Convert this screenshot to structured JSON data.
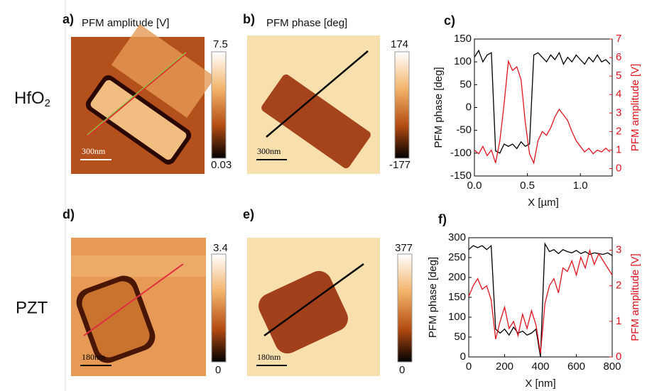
{
  "figure": {
    "rows": [
      {
        "label": "HfO",
        "sub": "2"
      },
      {
        "label": "PZT"
      }
    ],
    "panels": [
      {
        "label": "a)",
        "title": "PFM amplitude [V]",
        "scale_bar": "300nm",
        "colorbar": [
          7.5,
          0.03
        ]
      },
      {
        "label": "b)",
        "title": "PFM phase [deg]",
        "scale_bar": "300nm",
        "colorbar": [
          174,
          -177
        ]
      },
      {
        "label": "d)",
        "scale_bar": "180nm",
        "colorbar": [
          3.4,
          0
        ]
      },
      {
        "label": "e)",
        "scale_bar": "180nm",
        "colorbar": [
          377,
          0
        ]
      }
    ]
  },
  "chart_data": [
    {
      "type": "line",
      "label": "c)",
      "x": [
        0,
        0.04,
        0.08,
        0.12,
        0.16,
        0.2,
        0.24,
        0.28,
        0.32,
        0.36,
        0.4,
        0.44,
        0.48,
        0.52,
        0.56,
        0.6,
        0.64,
        0.68,
        0.72,
        0.76,
        0.8,
        0.84,
        0.88,
        0.92,
        0.96,
        1.0,
        1.04,
        1.08,
        1.12,
        1.16,
        1.2,
        1.24,
        1.28
      ],
      "xlim": [
        0,
        1.3
      ],
      "xticks": [
        {
          "value": 0,
          "label": "0.0"
        },
        {
          "value": 0.5,
          "label": "0.5"
        },
        {
          "value": 1,
          "label": "1.0"
        }
      ],
      "ylim": [
        -150,
        150
      ],
      "yticks": [
        -150,
        -100,
        -50,
        0,
        50,
        100,
        150
      ],
      "y2lim": [
        -0.4,
        7
      ],
      "y2ticks": [
        0,
        1,
        2,
        3,
        4,
        5,
        6,
        7
      ],
      "xlabel": "X [µm]",
      "ylabel": "PFM phase [deg]",
      "y2label": "PFM amplitude [V]",
      "series": [
        {
          "color": "#000000",
          "values": [
            110,
            125,
            100,
            115,
            120,
            -95,
            -100,
            -80,
            -85,
            -80,
            -90,
            -75,
            -85,
            -80,
            115,
            120,
            110,
            100,
            115,
            105,
            120,
            95,
            110,
            100,
            115,
            105,
            95,
            110,
            100,
            115,
            100,
            105,
            95
          ]
        },
        {
          "color": "#e0141e",
          "axis": "y2",
          "values": [
            1.0,
            0.8,
            1.2,
            0.7,
            1.0,
            0.3,
            1.5,
            3.5,
            5.8,
            5.3,
            5.5,
            4.8,
            2.5,
            0.8,
            0.3,
            1.5,
            2.0,
            1.8,
            2.2,
            2.8,
            3.2,
            2.9,
            2.6,
            2.0,
            1.5,
            1.2,
            0.9,
            1.1,
            0.8,
            1.0,
            0.9,
            1.1,
            0.9
          ]
        }
      ]
    },
    {
      "type": "line",
      "label": "f)",
      "x": [
        0,
        25,
        50,
        75,
        100,
        125,
        150,
        175,
        200,
        225,
        250,
        275,
        300,
        325,
        350,
        375,
        400,
        425,
        450,
        475,
        500,
        525,
        550,
        575,
        600,
        625,
        650,
        675,
        700,
        725,
        750,
        775,
        800
      ],
      "xlim": [
        0,
        800
      ],
      "xticks": [
        0,
        200,
        400,
        600,
        800
      ],
      "ylim": [
        0,
        300
      ],
      "yticks": [
        0,
        50,
        100,
        150,
        200,
        250,
        300
      ],
      "y2lim": [
        0,
        3.35
      ],
      "y2ticks": [
        0,
        1,
        2,
        3
      ],
      "xlabel": "X [nm]",
      "ylabel": "PFM phase [deg]",
      "y2label": "PFM amplitude [V]",
      "series": [
        {
          "color": "#000000",
          "values": [
            270,
            280,
            275,
            280,
            270,
            280,
            70,
            60,
            70,
            55,
            75,
            60,
            65,
            55,
            60,
            70,
            0,
            285,
            265,
            270,
            260,
            270,
            265,
            262,
            268,
            260,
            265,
            258,
            262,
            260,
            258,
            262,
            255
          ]
        },
        {
          "color": "#e0141e",
          "axis": "y2",
          "values": [
            1.7,
            2.0,
            2.2,
            1.9,
            2.0,
            1.6,
            0.5,
            1.0,
            1.4,
            0.8,
            1.0,
            0.6,
            1.2,
            0.8,
            1.3,
            0.9,
            0.1,
            1.5,
            2.0,
            2.2,
            1.8,
            2.5,
            2.4,
            2.7,
            2.3,
            2.8,
            2.5,
            3.0,
            2.6,
            2.9,
            2.7,
            2.5,
            2.3
          ]
        }
      ]
    }
  ]
}
